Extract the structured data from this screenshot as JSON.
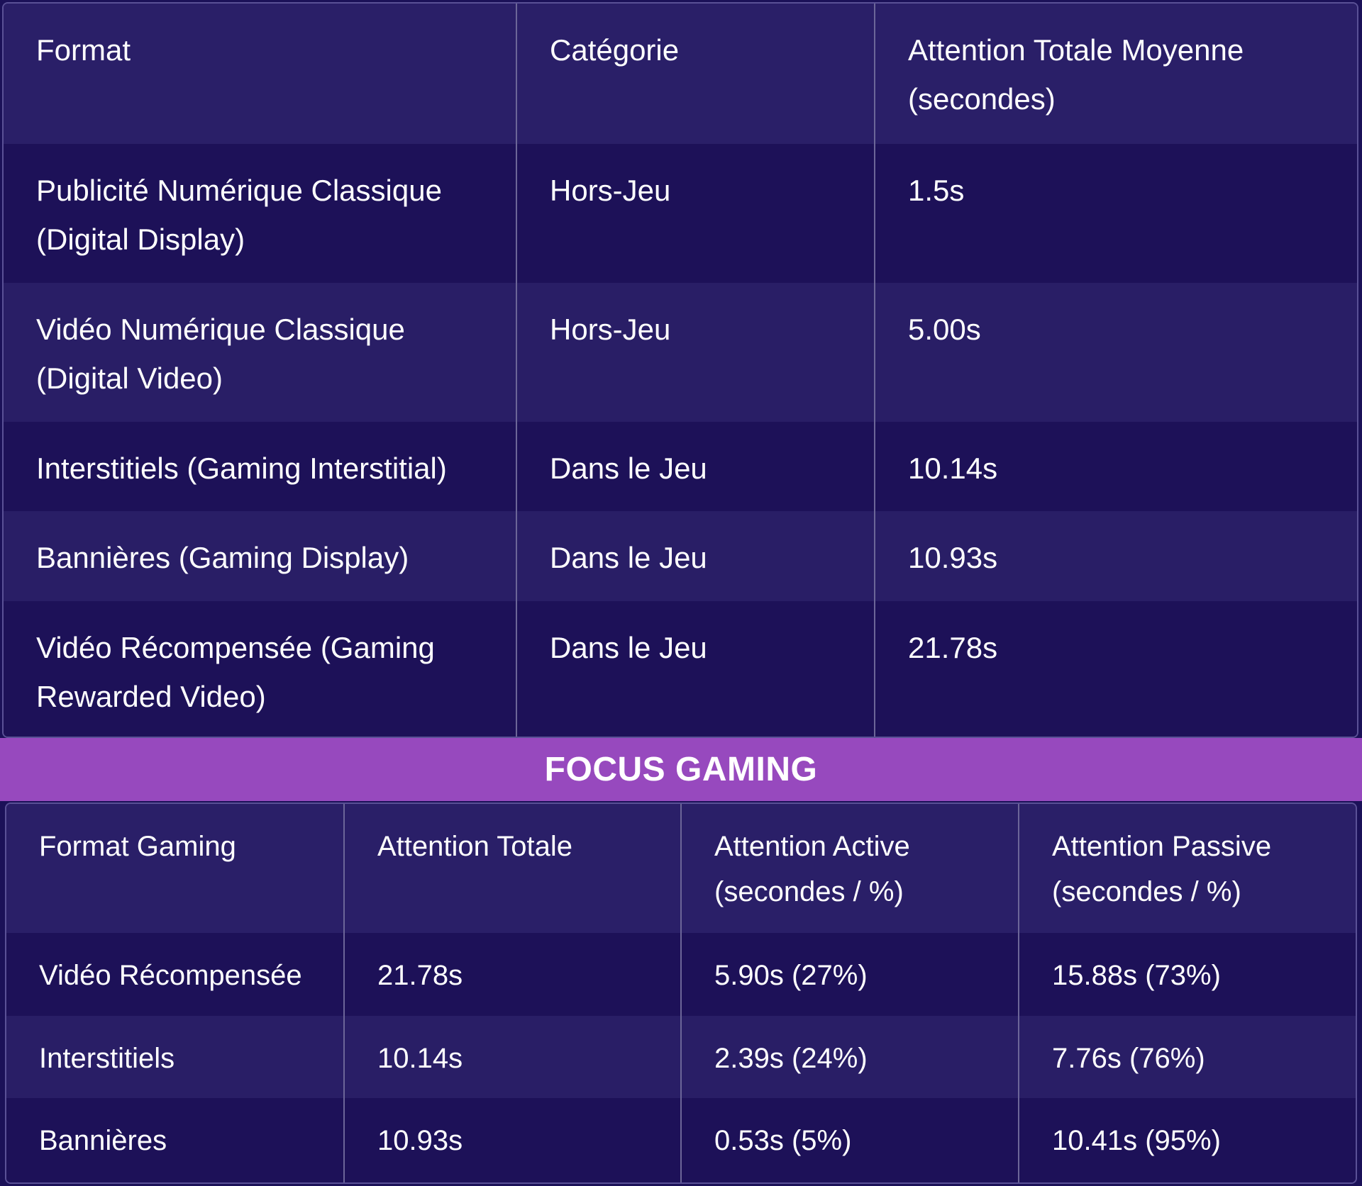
{
  "table1": {
    "headers": [
      "Format",
      "Catégorie",
      "Attention Totale Moyenne (secondes)"
    ],
    "rows": [
      [
        "Publicité Numérique Classique (Digital Display)",
        "Hors-Jeu",
        "1.5s"
      ],
      [
        "Vidéo Numérique Classique (Digital Video)",
        "Hors-Jeu",
        "5.00s"
      ],
      [
        "Interstitiels (Gaming Interstitial)",
        "Dans le Jeu",
        "10.14s"
      ],
      [
        "Bannières (Gaming Display)",
        "Dans le Jeu",
        "10.93s"
      ],
      [
        "Vidéo Récompensée (Gaming Rewarded Video)",
        "Dans le Jeu",
        "21.78s"
      ]
    ]
  },
  "banner": {
    "title": "FOCUS GAMING"
  },
  "table2": {
    "headers": [
      "Format Gaming",
      "Attention Totale",
      "Attention Active (secondes / %)",
      "Attention Passive (secondes / %)"
    ],
    "rows": [
      [
        "Vidéo Récompensée",
        "21.78s",
        "5.90s (27%)",
        "15.88s (73%)"
      ],
      [
        "Interstitiels",
        "10.14s",
        "2.39s (24%)",
        "7.76s (76%)"
      ],
      [
        "Bannières",
        "10.93s",
        "0.53s (5%)",
        "10.41s (95%)"
      ]
    ]
  },
  "colors": {
    "background": "#1d1158",
    "header_row": "#2a1f68",
    "alt_row": "#291e66",
    "banner": "#9749be",
    "text": "#ffffff"
  }
}
